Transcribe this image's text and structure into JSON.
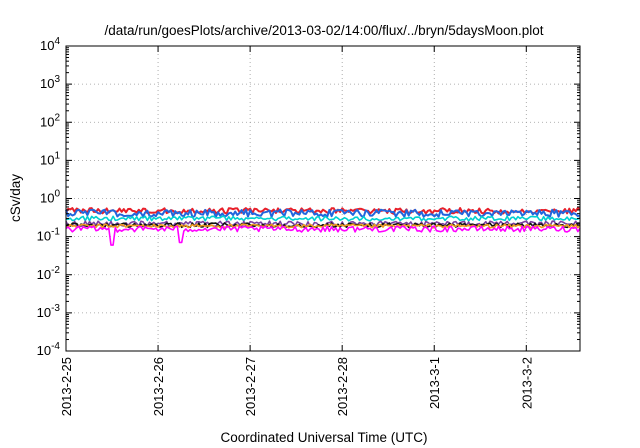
{
  "chart_data": {
    "type": "line",
    "title": "/data/run/goesPlots/archive/2013-03-02/14:00/flux/../bryn/5daysMoon.plot",
    "xlabel": "Coordinated Universal Time (UTC)",
    "ylabel": "cSv/day",
    "y_scale": "log",
    "ylim": [
      0.0001,
      10000
    ],
    "xlim": [
      "2013-02-25",
      "2013-03-02 14:00"
    ],
    "grid": true,
    "legend": "none",
    "x_ticks": [
      "2013-2-25",
      "2013-2-26",
      "2013-2-27",
      "2013-2-28",
      "2013-3-1",
      "2013-3-2"
    ],
    "y_ticks": [
      {
        "base": "10",
        "exp": "-4"
      },
      {
        "base": "10",
        "exp": "-3"
      },
      {
        "base": "10",
        "exp": "-2"
      },
      {
        "base": "10",
        "exp": "-1"
      },
      {
        "base": "10",
        "exp": "0"
      },
      {
        "base": "10",
        "exp": "1"
      },
      {
        "base": "10",
        "exp": "2"
      },
      {
        "base": "10",
        "exp": "3"
      },
      {
        "base": "10",
        "exp": "4"
      }
    ],
    "series_note": "approximate levels read from plot; each series fluctuates noisily around its level",
    "series": [
      {
        "color": "#e8202a",
        "level": 0.48,
        "spread": 0.12,
        "dips": []
      },
      {
        "color": "#2266dd",
        "level": 0.42,
        "spread": 0.13,
        "dips": []
      },
      {
        "color": "#00d0d0",
        "level": 0.3,
        "spread": 0.06,
        "dips": []
      },
      {
        "color": "#7a3fa0",
        "level": 0.22,
        "spread": 0.05,
        "dips": []
      },
      {
        "color": "#111111",
        "level": 0.2,
        "spread": 0.04,
        "dips": []
      },
      {
        "color": "#ee9a20",
        "level": 0.19,
        "spread": 0.03,
        "dips": []
      },
      {
        "color": "#ff00ff",
        "level": 0.16,
        "spread": 0.04,
        "dips": [
          {
            "date": "2013-02-25 12:00",
            "value": 0.06
          },
          {
            "date": "2013-02-26 06:00",
            "value": 0.07
          }
        ]
      }
    ]
  }
}
